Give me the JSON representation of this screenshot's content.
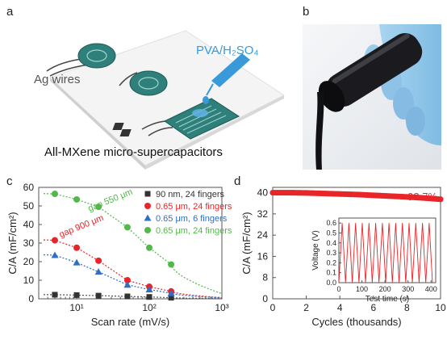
{
  "panels": {
    "a": {
      "letter": "a",
      "electrolyte_label": "PVA/H₂SO₄",
      "wires_label": "Ag wires",
      "caption": "All-MXene micro-supercapacitors"
    },
    "b": {
      "letter": "b"
    },
    "c": {
      "letter": "c"
    },
    "d": {
      "letter": "d"
    }
  },
  "colors": {
    "black_series": "#333333",
    "red_series": "#e8262a",
    "blue_series": "#2f6fc4",
    "green_series": "#52b84a",
    "electrolyte_blue": "#3a9ad9",
    "device_teal": "#2f7f7a",
    "glove_blue": "#8fc6e8"
  },
  "chart_data": [
    {
      "panel": "c",
      "type": "scatter",
      "x_scale": "log",
      "xlabel": "Scan rate (mV/s)",
      "ylabel": "C/A (mF/cm²)",
      "ylim": [
        0,
        60
      ],
      "xlim": [
        3,
        1000
      ],
      "yticks": [
        "0",
        "10",
        "20",
        "30",
        "40",
        "50",
        "60"
      ],
      "xticks": [
        "10¹",
        "10²",
        "10³"
      ],
      "series": [
        {
          "name": "90 nm, 24 fingers",
          "marker": "square",
          "color": "#333333",
          "x": [
            5,
            10,
            20,
            50,
            100,
            200
          ],
          "y": [
            2.2,
            2.0,
            1.7,
            1.3,
            1.0,
            0.6
          ]
        },
        {
          "name": "0.65 μm, 24 fingers",
          "marker": "circle",
          "color": "#e8262a",
          "x": [
            5,
            10,
            20,
            50,
            100,
            200
          ],
          "y": [
            31.5,
            27.5,
            20.5,
            10,
            6.5,
            4
          ]
        },
        {
          "name": "0.65 μm, 6 fingers",
          "marker": "triangle",
          "color": "#2f6fc4",
          "x": [
            5,
            10,
            20,
            50,
            100,
            200
          ],
          "y": [
            23.5,
            19.5,
            14.5,
            7.5,
            5,
            3
          ]
        },
        {
          "name": "0.65 μm, 24 fingers",
          "marker": "circle",
          "color": "#52b84a",
          "x": [
            5,
            10,
            20,
            50,
            100,
            200
          ],
          "y": [
            56.5,
            53.5,
            49.5,
            38.5,
            27.5,
            18.5
          ]
        }
      ],
      "annotations": [
        "gap 550 μm",
        "gap 900 μm"
      ],
      "legend": "top-right"
    },
    {
      "panel": "d",
      "type": "line",
      "xlabel": "Cycles (thousands)",
      "ylabel": "C/A (mF/cm²)",
      "xlim": [
        0,
        10
      ],
      "ylim": [
        0,
        42
      ],
      "xticks": [
        "0",
        "2",
        "4",
        "6",
        "8",
        "10"
      ],
      "yticks": [
        "0",
        "8",
        "16",
        "24",
        "32",
        "40"
      ],
      "retention_label": "93.7%",
      "series": [
        {
          "name": "",
          "color": "#e8262a",
          "x": [
            0,
            1,
            2,
            3,
            4,
            5,
            6,
            7,
            8,
            9,
            10
          ],
          "y": [
            40,
            40,
            39.9,
            39.7,
            39.5,
            39.3,
            39.0,
            38.7,
            38.4,
            38.0,
            37.5
          ]
        }
      ],
      "inset": {
        "type": "line",
        "xlabel": "Test time (s)",
        "ylabel": "Voltage (V)",
        "xlim": [
          0,
          420
        ],
        "ylim": [
          0,
          0.65
        ],
        "xticks": [
          "0",
          "100",
          "200",
          "300",
          "400"
        ],
        "yticks": [
          "0.0",
          "0.1",
          "0.2",
          "0.3",
          "0.4",
          "0.5",
          "0.6"
        ],
        "cycles": 14,
        "vmax": 0.6,
        "t_end": 406
      }
    }
  ]
}
